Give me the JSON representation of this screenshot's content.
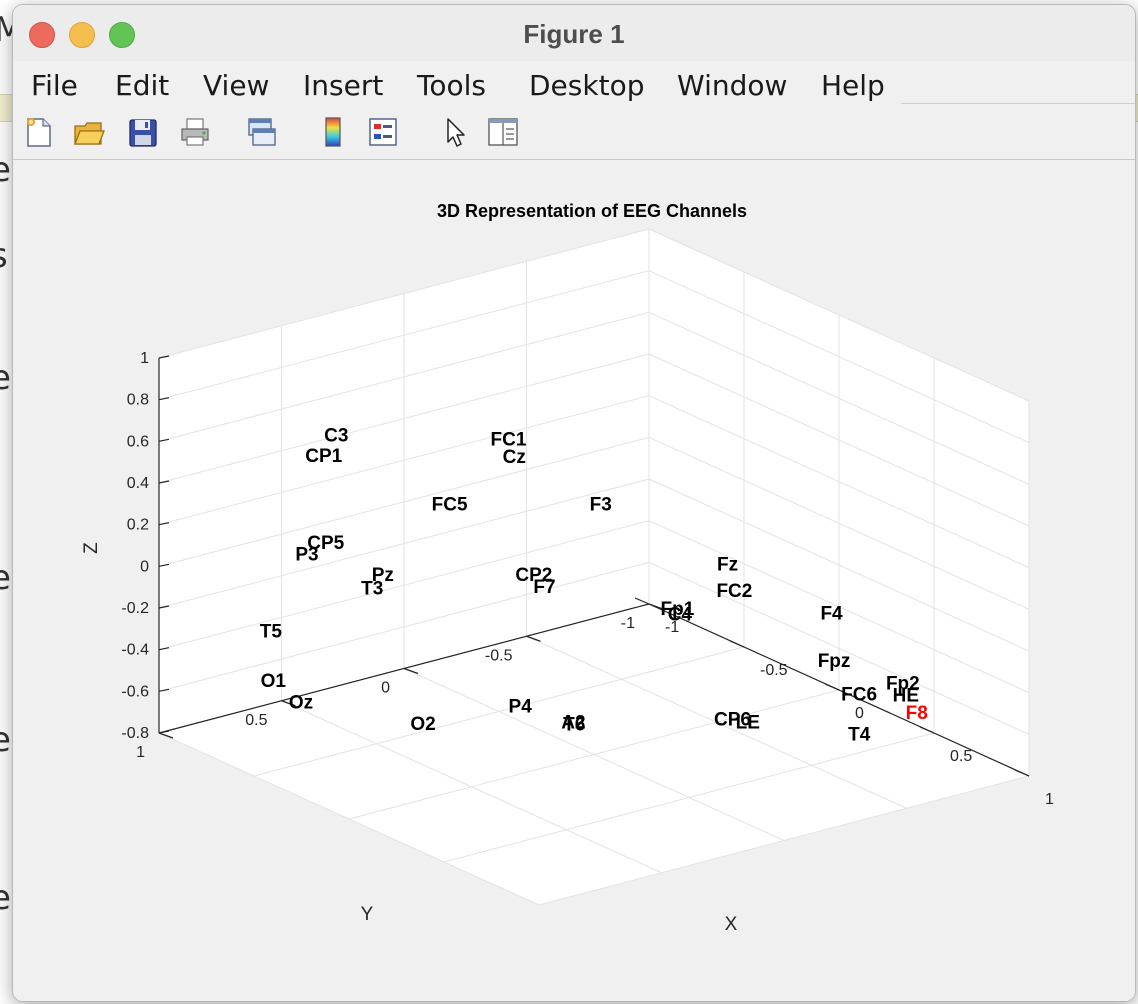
{
  "window": {
    "title": "Figure 1"
  },
  "menu": [
    "File",
    "Edit",
    "View",
    "Insert",
    "Tools",
    "Desktop",
    "Window",
    "Help"
  ],
  "toolbar": [
    {
      "name": "new-figure-icon"
    },
    {
      "name": "open-file-icon"
    },
    {
      "name": "save-icon"
    },
    {
      "name": "print-icon"
    },
    {
      "name": "link-plot-icon"
    },
    {
      "name": "colorbar-icon"
    },
    {
      "name": "legend-icon"
    },
    {
      "name": "pointer-icon"
    },
    {
      "name": "property-inspector-icon"
    }
  ],
  "background_fragments": [
    "M",
    "e",
    "s",
    "e",
    "e",
    "e",
    "e"
  ],
  "chart_data": {
    "type": "scatter",
    "title": "3D Representation of EEG Channels",
    "xlabel": "X",
    "ylabel": "Y",
    "zlabel": "Z",
    "xlim": [
      -1,
      1
    ],
    "ylim": [
      -1,
      1
    ],
    "zlim": [
      -0.8,
      1
    ],
    "xticks": [
      "-1",
      "-0.5",
      "0",
      "0.5",
      "1"
    ],
    "yticks": [
      "-1",
      "-0.5",
      "0",
      "0.5",
      "1"
    ],
    "zticks": [
      "-0.8",
      "-0.6",
      "-0.4",
      "-0.2",
      "0",
      "0.2",
      "0.4",
      "0.6",
      "0.8",
      "1"
    ],
    "grid": true,
    "highlight_color": "#ff0000",
    "label_color": "#000000",
    "points": [
      {
        "label": "FC1",
        "x": 0.04,
        "y": 0.38,
        "z": 0.85,
        "highlight": false
      },
      {
        "label": "Cz",
        "x": -0.02,
        "y": 0.31,
        "z": 0.72,
        "highlight": false
      },
      {
        "label": "C3",
        "x": -0.57,
        "y": 0.61,
        "z": 0.69,
        "highlight": false
      },
      {
        "label": "CP1",
        "x": -0.61,
        "y": 0.63,
        "z": 0.58,
        "highlight": false
      },
      {
        "label": "F3",
        "x": 0.19,
        "y": 0.12,
        "z": 0.52,
        "highlight": false
      },
      {
        "label": "Fz",
        "x": 0.6,
        "y": -0.08,
        "z": 0.34,
        "highlight": false
      },
      {
        "label": "FC5",
        "x": -0.27,
        "y": 0.38,
        "z": 0.41,
        "highlight": false
      },
      {
        "label": "FC2",
        "x": 0.61,
        "y": -0.1,
        "z": 0.21,
        "highlight": false
      },
      {
        "label": "CP5",
        "x": -0.78,
        "y": 0.49,
        "z": 0.05,
        "highlight": false
      },
      {
        "label": "P3",
        "x": -0.84,
        "y": 0.52,
        "z": -0.02,
        "highlight": false
      },
      {
        "label": "Pz",
        "x": -0.57,
        "y": 0.42,
        "z": -0.04,
        "highlight": false
      },
      {
        "label": "T3",
        "x": -0.6,
        "y": 0.44,
        "z": -0.11,
        "highlight": false
      },
      {
        "label": "CP2",
        "x": -0.11,
        "y": 0.16,
        "z": 0.07,
        "highlight": false
      },
      {
        "label": "F7",
        "x": -0.08,
        "y": 0.14,
        "z": 0.02,
        "highlight": false
      },
      {
        "label": "Fp1",
        "x": 0.31,
        "y": -0.1,
        "z": 0.0,
        "highlight": false
      },
      {
        "label": "C4",
        "x": 0.31,
        "y": -0.11,
        "z": -0.03,
        "highlight": false
      },
      {
        "label": "F4",
        "x": 0.67,
        "y": -0.45,
        "z": 0.02,
        "highlight": false
      },
      {
        "label": "Fpz",
        "x": 0.58,
        "y": -0.53,
        "z": -0.27,
        "highlight": false
      },
      {
        "label": "Fp2",
        "x": 0.71,
        "y": -0.71,
        "z": -0.38,
        "highlight": false
      },
      {
        "label": "HE",
        "x": 0.7,
        "y": -0.73,
        "z": -0.45,
        "highlight": false
      },
      {
        "label": "FC6",
        "x": 0.57,
        "y": -0.64,
        "z": -0.47,
        "highlight": false
      },
      {
        "label": "F8",
        "x": 0.68,
        "y": -0.79,
        "z": -0.56,
        "highlight": true
      },
      {
        "label": "T5",
        "x": -0.94,
        "y": 0.59,
        "z": -0.41,
        "highlight": false
      },
      {
        "label": "O1",
        "x": -0.94,
        "y": 0.58,
        "z": -0.65,
        "highlight": false
      },
      {
        "label": "P4",
        "x": -0.35,
        "y": 0.03,
        "z": -0.7,
        "highlight": false
      },
      {
        "label": "CP6",
        "x": 0.11,
        "y": -0.48,
        "z": -0.73,
        "highlight": false
      },
      {
        "label": "LE",
        "x": 0.1,
        "y": -0.55,
        "z": -0.77,
        "highlight": false
      },
      {
        "label": "T4",
        "x": 0.39,
        "y": -0.78,
        "z": -0.78,
        "highlight": false
      },
      {
        "label": "Oz",
        "x": -0.82,
        "y": 0.56,
        "z": -0.71,
        "highlight": false
      },
      {
        "label": "O2",
        "x": -0.5,
        "y": 0.31,
        "z": -0.76,
        "highlight": false
      },
      {
        "label": "T6",
        "x": -0.22,
        "y": -0.09,
        "z": -0.77,
        "highlight": false
      },
      {
        "label": "A2",
        "x": -0.25,
        "y": -0.11,
        "z": -0.78,
        "highlight": false
      }
    ]
  }
}
